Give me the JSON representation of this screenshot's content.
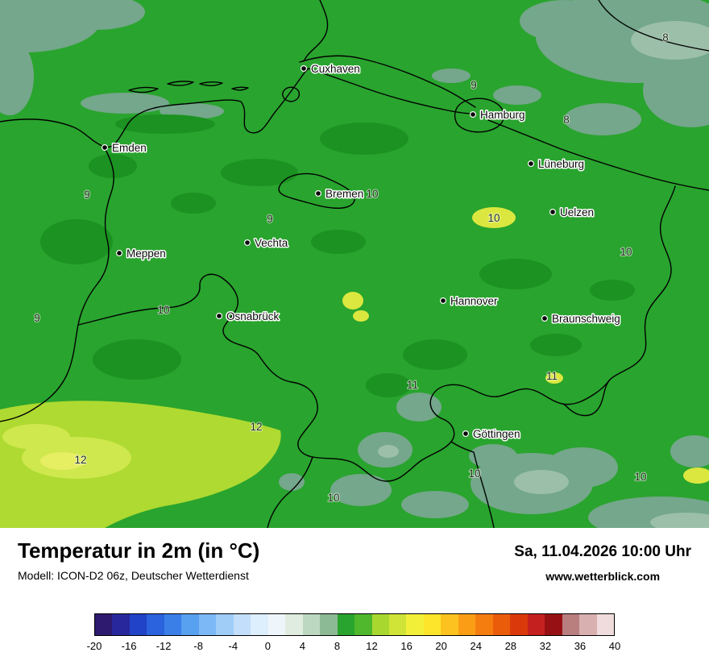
{
  "map": {
    "palette": {
      "base-green": "#29a42e",
      "dark-green": "#1b9221",
      "teal-green": "#74a78b",
      "light-teal": "#9cbfa9",
      "yellow-green": "#aeda31",
      "light-yellow-green": "#cfe84d",
      "pale-yellow": "#e6ee62",
      "spot-yellow": "#dbe73f",
      "border-black": "#000000"
    },
    "cities": [
      {
        "name": "Cuxhaven"
      },
      {
        "name": "Hamburg"
      },
      {
        "name": "Emden"
      },
      {
        "name": "Lüneburg"
      },
      {
        "name": "Bremen"
      },
      {
        "name": "Uelzen"
      },
      {
        "name": "Vechta"
      },
      {
        "name": "Meppen"
      },
      {
        "name": "Hannover"
      },
      {
        "name": "Osnabrück"
      },
      {
        "name": "Braunschweig"
      },
      {
        "name": "Göttingen"
      }
    ],
    "temps": [
      {
        "value": "9"
      },
      {
        "value": "8"
      },
      {
        "value": "8"
      },
      {
        "value": "9"
      },
      {
        "value": "10"
      },
      {
        "value": "9"
      },
      {
        "value": "10"
      },
      {
        "value": "10"
      },
      {
        "value": "10"
      },
      {
        "value": "9"
      },
      {
        "value": "11"
      },
      {
        "value": "11"
      },
      {
        "value": "12"
      },
      {
        "value": "12"
      },
      {
        "value": "10"
      },
      {
        "value": "10"
      },
      {
        "value": "10"
      }
    ]
  },
  "footer": {
    "title": "Temperatur in 2m (in °C)",
    "model_line": "Modell: ICON-D2 06z, Deutscher Wetterdienst",
    "datetime": "Sa, 11.04.2026 10:00 Uhr",
    "website": "www.wetterblick.com"
  },
  "colorbar": {
    "unit_min": -20,
    "unit_max": 40,
    "step": 4,
    "ticks": [
      "-20",
      "-16",
      "-12",
      "-8",
      "-4",
      "0",
      "4",
      "8",
      "12",
      "16",
      "20",
      "24",
      "28",
      "32",
      "36",
      "40"
    ],
    "colors": [
      "#2e1a6e",
      "#28289c",
      "#2143c8",
      "#2b62dd",
      "#3a7fe8",
      "#58a0f0",
      "#7cb8f6",
      "#a0cdf8",
      "#c2defa",
      "#ddeefd",
      "#eef6fb",
      "#dfecdf",
      "#bcd8c0",
      "#8cba95",
      "#29a42e",
      "#4fb82c",
      "#a8d82f",
      "#cfe436",
      "#f2ef38",
      "#fce52b",
      "#fcc320",
      "#fb9e16",
      "#f57d10",
      "#ea5c0a",
      "#da3a0b",
      "#c52020",
      "#971114",
      "#b97e7e",
      "#d9b0b0",
      "#f0dcdc"
    ]
  }
}
